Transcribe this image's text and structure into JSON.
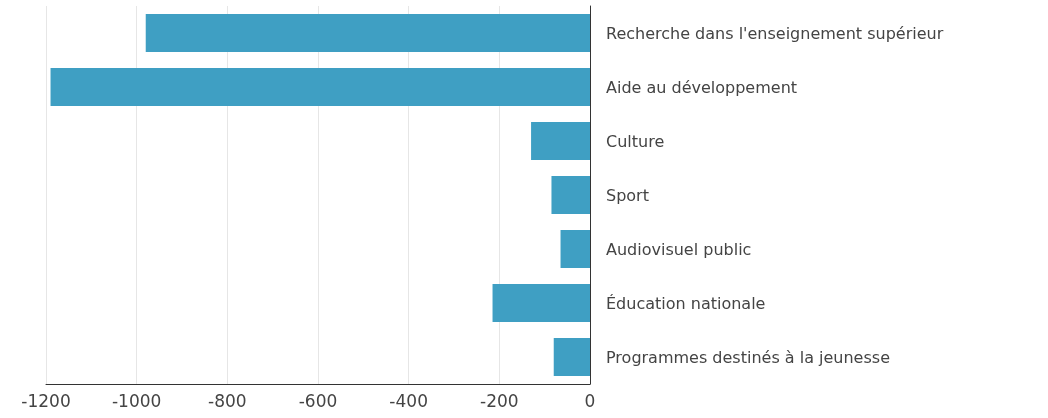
{
  "chart_data": {
    "type": "bar",
    "orientation": "horizontal",
    "categories": [
      "Recherche dans l'enseignement supérieur",
      "Aide au développement",
      "Culture",
      "Sport",
      "Audiovisuel public",
      "Éducation nationale",
      "Programmes destinés à la jeunesse"
    ],
    "values": [
      -980,
      -1190,
      -130,
      -85,
      -65,
      -215,
      -80
    ],
    "color": "#3f9fc3",
    "xlim": [
      -1200,
      0
    ],
    "xticks": [
      -1200,
      -1000,
      -800,
      -600,
      -400,
      -200,
      0
    ],
    "grid": "x"
  }
}
